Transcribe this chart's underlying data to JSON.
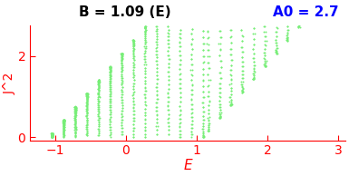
{
  "title_left": "B = 1.09 (E)",
  "title_right": "A0 = 2.7",
  "xlabel": "E",
  "ylabel": "J^2",
  "xlim": [
    -1.35,
    3.1
  ],
  "ylim": [
    -0.07,
    2.75
  ],
  "xticks": [
    -1,
    0,
    1,
    2,
    3
  ],
  "yticks": [
    0,
    2
  ],
  "dot_color": "#77ee77",
  "axis_color": "red",
  "title_left_color": "black",
  "title_right_color": "blue",
  "dot_size": 2.0,
  "B": 1.09,
  "A0": 2.7,
  "num_curves": 22,
  "pts_per_curve": 90
}
